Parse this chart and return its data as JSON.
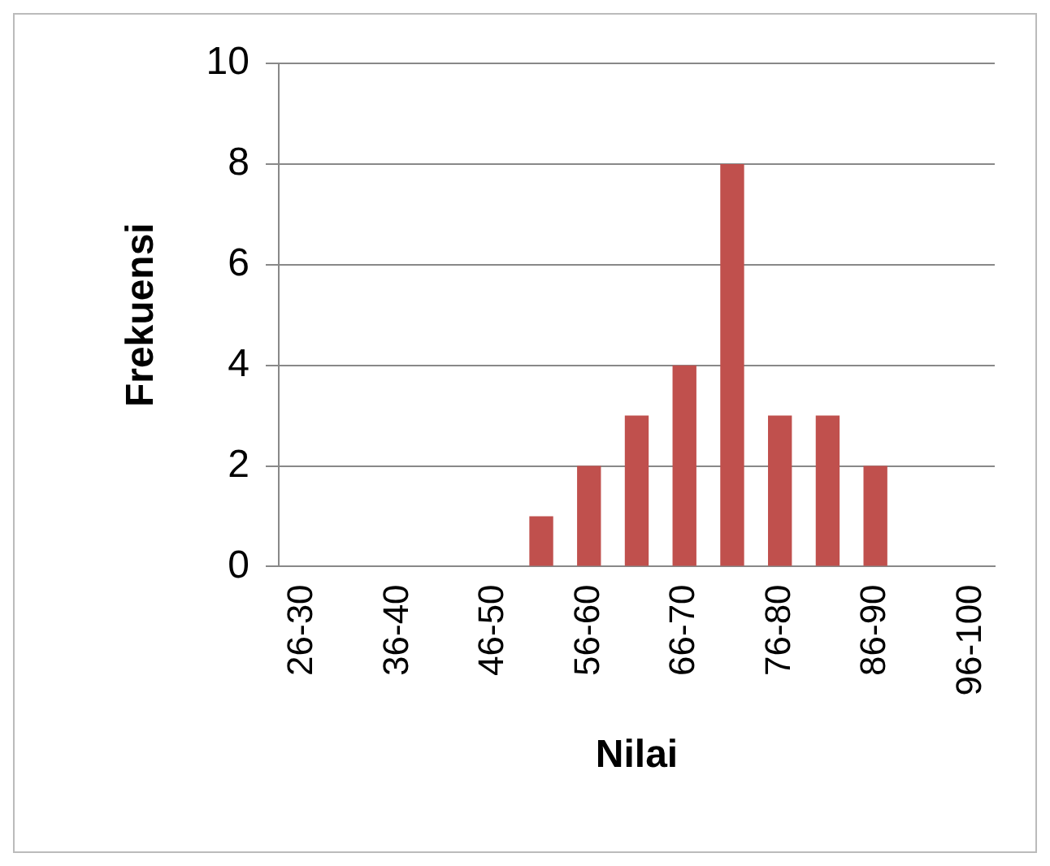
{
  "chart_data": {
    "type": "bar",
    "xlabel": "Nilai",
    "ylabel": "Frekuensi",
    "categories": [
      "26-30",
      null,
      "36-40",
      null,
      "46-50",
      null,
      "56-60",
      null,
      "66-70",
      null,
      "76-80",
      null,
      "86-90",
      null,
      "96-100"
    ],
    "values": [
      0,
      0,
      0,
      0,
      0,
      1,
      2,
      3,
      4,
      8,
      3,
      3,
      2,
      0,
      0
    ],
    "color": "#c0504d",
    "ylim": [
      0,
      10
    ],
    "yticks": [
      0,
      2,
      4,
      6,
      8,
      10
    ],
    "grid": "y",
    "legend": false
  }
}
